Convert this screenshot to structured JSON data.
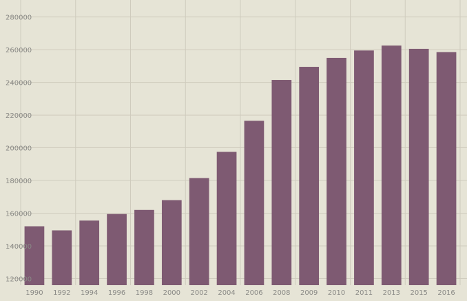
{
  "chart_data": {
    "type": "bar",
    "title": "",
    "xlabel": "",
    "ylabel": "",
    "categories": [
      "1990",
      "1992",
      "1994",
      "1996",
      "1998",
      "2000",
      "2002",
      "2004",
      "2006",
      "2008",
      "2009",
      "2010",
      "2011",
      "2013",
      "2015",
      "2016"
    ],
    "values": [
      152000,
      149500,
      155500,
      159500,
      162000,
      168000,
      181500,
      197500,
      216500,
      241500,
      249500,
      255000,
      259500,
      262500,
      260500,
      258500
    ],
    "yticks": [
      "120000",
      "140000",
      "160000",
      "180000",
      "200000",
      "220000",
      "240000",
      "260000",
      "280000"
    ],
    "ylim": [
      116000,
      287000
    ],
    "grid": true,
    "legend": "none",
    "colors": {
      "bar": "#7e5a72",
      "background": "#e6e4d6",
      "grid": "#cfcbbd",
      "tick_text": "#8a8a86"
    }
  }
}
